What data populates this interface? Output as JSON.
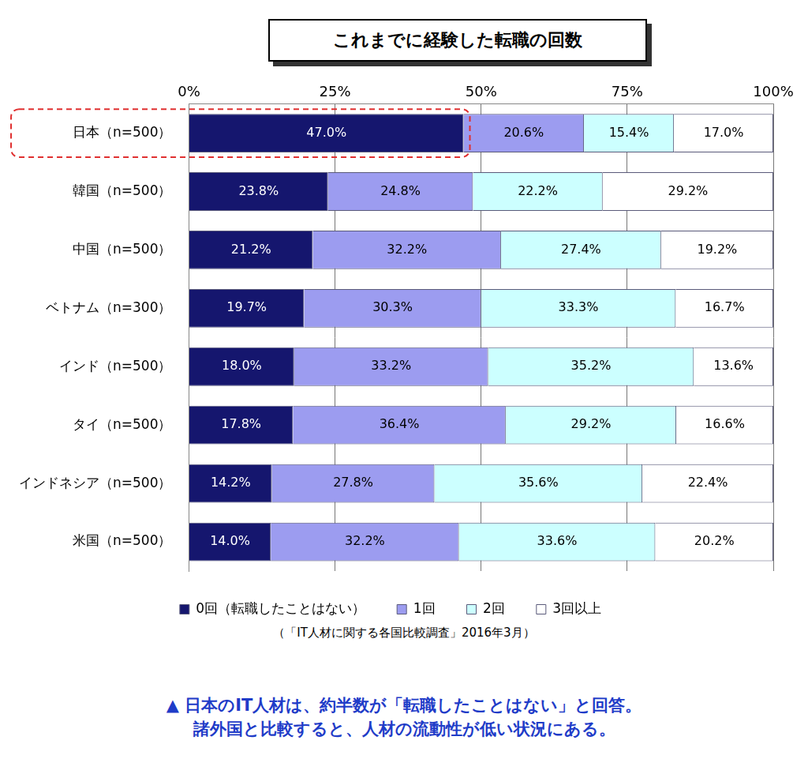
{
  "chart_data": {
    "type": "bar",
    "orientation": "horizontal",
    "stacked": true,
    "title": "これまでに経験した転職の回数",
    "categories": [
      "日本（n=500）",
      "韓国（n=500）",
      "中国（n=500）",
      "ベトナム（n=300）",
      "インド（n=500）",
      "タイ（n=500）",
      "インドネシア（n=500）",
      "米国（n=500）"
    ],
    "series": [
      {
        "name": "0回（転職したことはない）",
        "color": "#15166e",
        "values": [
          47.0,
          23.8,
          21.2,
          19.7,
          18.0,
          17.8,
          14.2,
          14.0
        ],
        "value_labels": [
          "47.0%",
          "23.8%",
          "21.2%",
          "19.7%",
          "18.0%",
          "17.8%",
          "14.2%",
          "14.0%"
        ]
      },
      {
        "name": "1回",
        "color": "#9c9cf0",
        "values": [
          20.6,
          24.8,
          32.2,
          30.3,
          33.2,
          36.4,
          27.8,
          32.2
        ],
        "value_labels": [
          "20.6%",
          "24.8%",
          "32.2%",
          "30.3%",
          "33.2%",
          "36.4%",
          "27.8%",
          "32.2%"
        ]
      },
      {
        "name": "2回",
        "color": "#ccffff",
        "values": [
          15.4,
          22.2,
          27.4,
          33.3,
          35.2,
          29.2,
          35.6,
          33.6
        ],
        "value_labels": [
          "15.4%",
          "22.2%",
          "27.4%",
          "33.3%",
          "35.2%",
          "29.2%",
          "35.6%",
          "33.6%"
        ]
      },
      {
        "name": "3回以上",
        "color": "#ffffff",
        "values": [
          17.0,
          29.2,
          19.2,
          16.7,
          13.6,
          16.6,
          22.4,
          20.2
        ],
        "value_labels": [
          "17.0%",
          "29.2%",
          "19.2%",
          "16.7%",
          "13.6%",
          "16.6%",
          "22.4%",
          "20.2%"
        ]
      }
    ],
    "xlim": [
      0,
      100
    ],
    "xticks": [
      {
        "value": 0,
        "label": "0%"
      },
      {
        "value": 25,
        "label": "25%"
      },
      {
        "value": 50,
        "label": "50%"
      },
      {
        "value": 75,
        "label": "75%"
      },
      {
        "value": 100,
        "label": "100%"
      }
    ],
    "grid": true,
    "legend": "bottom",
    "data_labels": true,
    "annotations": [
      "（「IT人材に関する各国比較調査」2016年3月）",
      "▲ 日本のIT人材は、約半数が「転職したことはない」と回答。",
      "諸外国と比較すると、人材の流動性が低い状況にある。"
    ]
  }
}
